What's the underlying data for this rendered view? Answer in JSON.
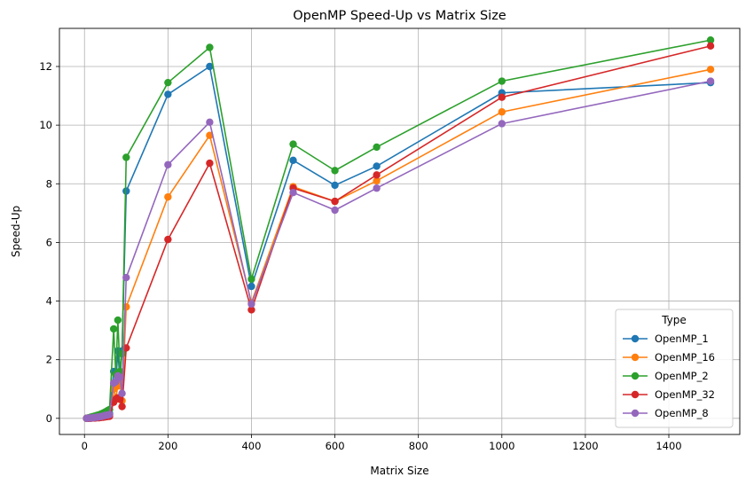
{
  "chart_data": {
    "type": "line",
    "title": "OpenMP Speed-Up vs Matrix Size",
    "xlabel": "Matrix Size",
    "ylabel": "Speed-Up",
    "xlim": [
      -60,
      1570
    ],
    "ylim": [
      -0.55,
      13.3
    ],
    "xticks": [
      0,
      200,
      400,
      600,
      800,
      1000,
      1200,
      1400
    ],
    "yticks": [
      0,
      2,
      4,
      6,
      8,
      10,
      12
    ],
    "grid": true,
    "legend": {
      "title": "Type",
      "placement": "lower-right"
    },
    "series": [
      {
        "name": "OpenMP_1",
        "color": "#1f77b4",
        "x": [
          5,
          10,
          15,
          20,
          25,
          30,
          35,
          40,
          45,
          50,
          55,
          60,
          70,
          75,
          80,
          85,
          90,
          100,
          200,
          300,
          400,
          500,
          600,
          700,
          1000,
          1500
        ],
        "y": [
          0.0,
          0.01,
          0.02,
          0.03,
          0.04,
          0.05,
          0.06,
          0.08,
          0.1,
          0.12,
          0.14,
          0.17,
          1.6,
          1.2,
          2.3,
          1.3,
          2.3,
          7.75,
          11.05,
          12.0,
          4.5,
          8.8,
          7.95,
          8.6,
          11.1,
          11.45
        ]
      },
      {
        "name": "OpenMP_16",
        "color": "#ff7f0e",
        "x": [
          5,
          10,
          15,
          20,
          25,
          30,
          35,
          40,
          45,
          50,
          55,
          60,
          70,
          75,
          80,
          85,
          90,
          100,
          200,
          300,
          400,
          500,
          600,
          700,
          1000,
          1500
        ],
        "y": [
          0.0,
          0.0,
          0.01,
          0.02,
          0.03,
          0.04,
          0.05,
          0.06,
          0.07,
          0.09,
          0.1,
          0.12,
          1.0,
          0.7,
          1.1,
          1.2,
          0.6,
          3.8,
          7.55,
          9.65,
          3.95,
          7.9,
          7.4,
          8.1,
          10.45,
          11.9
        ]
      },
      {
        "name": "OpenMP_2",
        "color": "#2ca02c",
        "x": [
          5,
          10,
          15,
          20,
          25,
          30,
          35,
          40,
          45,
          50,
          55,
          60,
          70,
          75,
          80,
          85,
          90,
          100,
          200,
          300,
          400,
          500,
          600,
          700,
          1000,
          1500
        ],
        "y": [
          0.0,
          0.02,
          0.04,
          0.06,
          0.08,
          0.1,
          0.12,
          0.15,
          0.18,
          0.22,
          0.26,
          0.3,
          3.05,
          1.5,
          3.35,
          1.6,
          2.2,
          8.9,
          11.45,
          12.65,
          4.75,
          9.35,
          8.45,
          9.25,
          11.5,
          12.9
        ]
      },
      {
        "name": "OpenMP_32",
        "color": "#d62728",
        "x": [
          5,
          10,
          15,
          20,
          25,
          30,
          35,
          40,
          45,
          50,
          55,
          60,
          70,
          75,
          80,
          85,
          90,
          100,
          200,
          300,
          400,
          500,
          600,
          700,
          1000,
          1500
        ],
        "y": [
          0.0,
          0.0,
          0.0,
          0.01,
          0.01,
          0.02,
          0.02,
          0.03,
          0.04,
          0.05,
          0.06,
          0.07,
          0.55,
          0.65,
          0.7,
          0.65,
          0.4,
          2.4,
          6.1,
          8.7,
          3.7,
          7.85,
          7.4,
          8.3,
          10.95,
          12.7
        ]
      },
      {
        "name": "OpenMP_8",
        "color": "#9467bd",
        "x": [
          5,
          10,
          15,
          20,
          25,
          30,
          35,
          40,
          45,
          50,
          55,
          60,
          70,
          75,
          80,
          85,
          90,
          100,
          200,
          300,
          400,
          500,
          600,
          700,
          1000,
          1500
        ],
        "y": [
          0.0,
          0.01,
          0.01,
          0.02,
          0.03,
          0.04,
          0.05,
          0.06,
          0.08,
          0.1,
          0.11,
          0.13,
          1.2,
          1.25,
          1.45,
          1.4,
          0.85,
          4.8,
          8.65,
          10.1,
          3.9,
          7.7,
          7.1,
          7.85,
          10.05,
          11.5
        ]
      }
    ]
  }
}
